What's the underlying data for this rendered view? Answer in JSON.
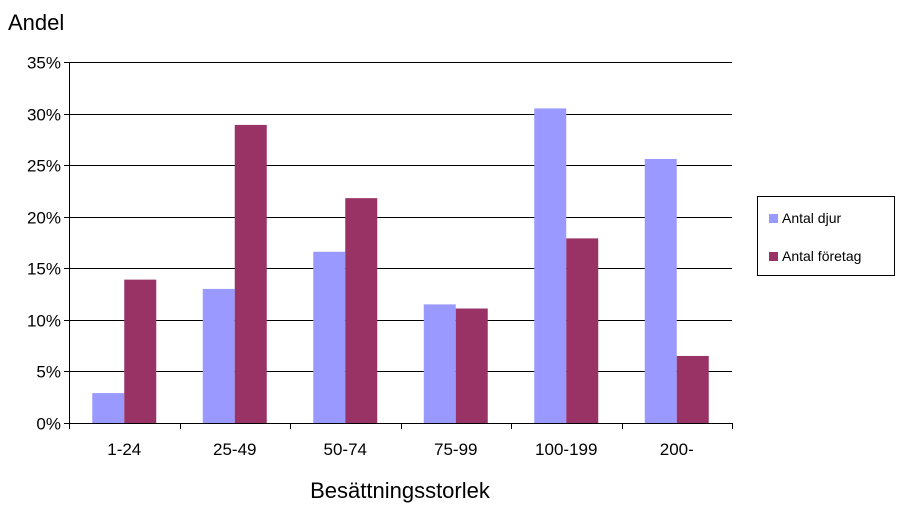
{
  "chart_data": {
    "type": "bar",
    "title": "",
    "ylabel": "Andel",
    "xlabel": "Besättningsstorlek",
    "categories": [
      "1-24",
      "25-49",
      "50-74",
      "75-99",
      "100-199",
      "200-"
    ],
    "series": [
      {
        "name": "Antal djur",
        "color": "#9999FF",
        "values": [
          2.9,
          13.0,
          16.6,
          11.5,
          30.5,
          25.6
        ]
      },
      {
        "name": "Antal företag",
        "color": "#993366",
        "values": [
          13.9,
          28.9,
          21.8,
          11.1,
          17.9,
          6.5
        ]
      }
    ],
    "ylim": [
      0,
      35
    ],
    "yticks": [
      "0%",
      "5%",
      "10%",
      "15%",
      "20%",
      "25%",
      "30%",
      "35%"
    ],
    "grid": true,
    "legend_position": "right"
  }
}
